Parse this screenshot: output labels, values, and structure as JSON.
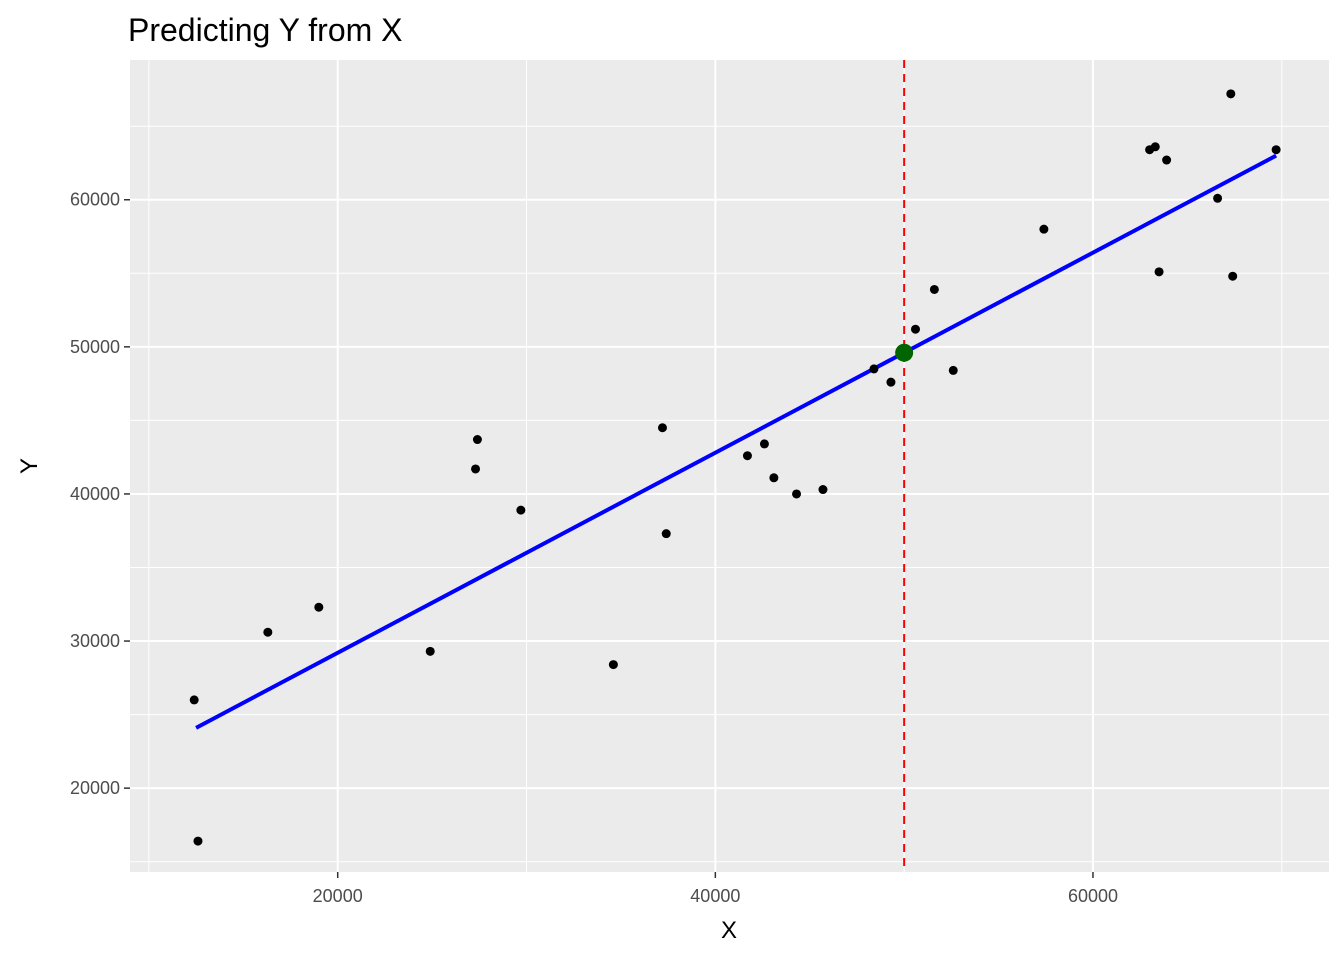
{
  "chart_data": {
    "type": "scatter",
    "title": "Predicting Y from X",
    "xlabel": "X",
    "ylabel": "Y",
    "xlim": [
      9000,
      72500
    ],
    "ylim": [
      14300,
      69500
    ],
    "x_ticks": [
      20000,
      40000,
      60000
    ],
    "y_ticks": [
      20000,
      30000,
      40000,
      50000,
      60000
    ],
    "grid": true,
    "points": [
      {
        "x": 12400,
        "y": 26000
      },
      {
        "x": 12600,
        "y": 16400
      },
      {
        "x": 16300,
        "y": 30600
      },
      {
        "x": 19000,
        "y": 32300
      },
      {
        "x": 24900,
        "y": 29300
      },
      {
        "x": 27300,
        "y": 41700
      },
      {
        "x": 27400,
        "y": 43700
      },
      {
        "x": 29700,
        "y": 38900
      },
      {
        "x": 34600,
        "y": 28400
      },
      {
        "x": 37200,
        "y": 44500
      },
      {
        "x": 37400,
        "y": 37300
      },
      {
        "x": 41700,
        "y": 42600
      },
      {
        "x": 42600,
        "y": 43400
      },
      {
        "x": 43100,
        "y": 41100
      },
      {
        "x": 44300,
        "y": 40000
      },
      {
        "x": 45700,
        "y": 40300
      },
      {
        "x": 48400,
        "y": 48500
      },
      {
        "x": 49300,
        "y": 47600
      },
      {
        "x": 50600,
        "y": 51200
      },
      {
        "x": 51600,
        "y": 53900
      },
      {
        "x": 52600,
        "y": 48400
      },
      {
        "x": 57400,
        "y": 58000
      },
      {
        "x": 63000,
        "y": 63400
      },
      {
        "x": 63300,
        "y": 63600
      },
      {
        "x": 63500,
        "y": 55100
      },
      {
        "x": 63900,
        "y": 62700
      },
      {
        "x": 66600,
        "y": 60100
      },
      {
        "x": 67300,
        "y": 67200
      },
      {
        "x": 67400,
        "y": 54800
      },
      {
        "x": 69700,
        "y": 63400
      }
    ],
    "regression_line": {
      "color": "#0000FF",
      "x": [
        12500,
        69700
      ],
      "y": [
        24100,
        63000
      ]
    },
    "vertical_line": {
      "x": 50000,
      "color": "#FF0000",
      "style": "dashed"
    },
    "highlight_point": {
      "x": 50000,
      "y": 49600,
      "color": "#006400"
    }
  }
}
